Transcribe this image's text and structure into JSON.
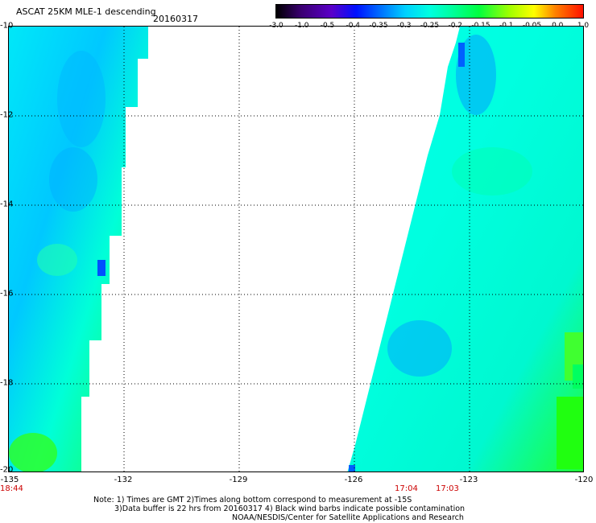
{
  "header": {
    "title": "ASCAT 25KM MLE-1 descending",
    "date": "20160317"
  },
  "colorbar": {
    "ticks": [
      "-3.0",
      "-1.0",
      "-0.5",
      "-0.4",
      "-0.35",
      "-0.3",
      "-0.25",
      "-0.2",
      "-0.15",
      "-0.1",
      "-0.05",
      "0.0",
      "1.0"
    ],
    "colors": [
      "#000000",
      "#0010ff",
      "#00d0ff",
      "#00ffe0",
      "#00ff40",
      "#ffff00",
      "#ff1000"
    ]
  },
  "map": {
    "lat_labels": [
      "-10",
      "-12",
      "-14",
      "-16",
      "-18",
      "-20"
    ],
    "lon_labels": [
      "-135",
      "-132",
      "-129",
      "-126",
      "-123",
      "-120"
    ],
    "swath_colors": {
      "cyan": "#00ffe8",
      "light_blue": "#00c8ff",
      "blue": "#0080ff",
      "green": "#00ff80",
      "lime": "#20ff20"
    }
  },
  "times": {
    "left": "18:44",
    "mid1": "17:04",
    "mid2": "17:03"
  },
  "notes": {
    "line1": "Note: 1) Times are GMT 2)Times along bottom correspond to measurement at -15S",
    "line2": "3)Data buffer is 22 hrs from 20160317 4) Black wind barbs indicate possible contamination",
    "line3": "NOAA/NESDIS/Center for Satellite Applications and Research"
  }
}
